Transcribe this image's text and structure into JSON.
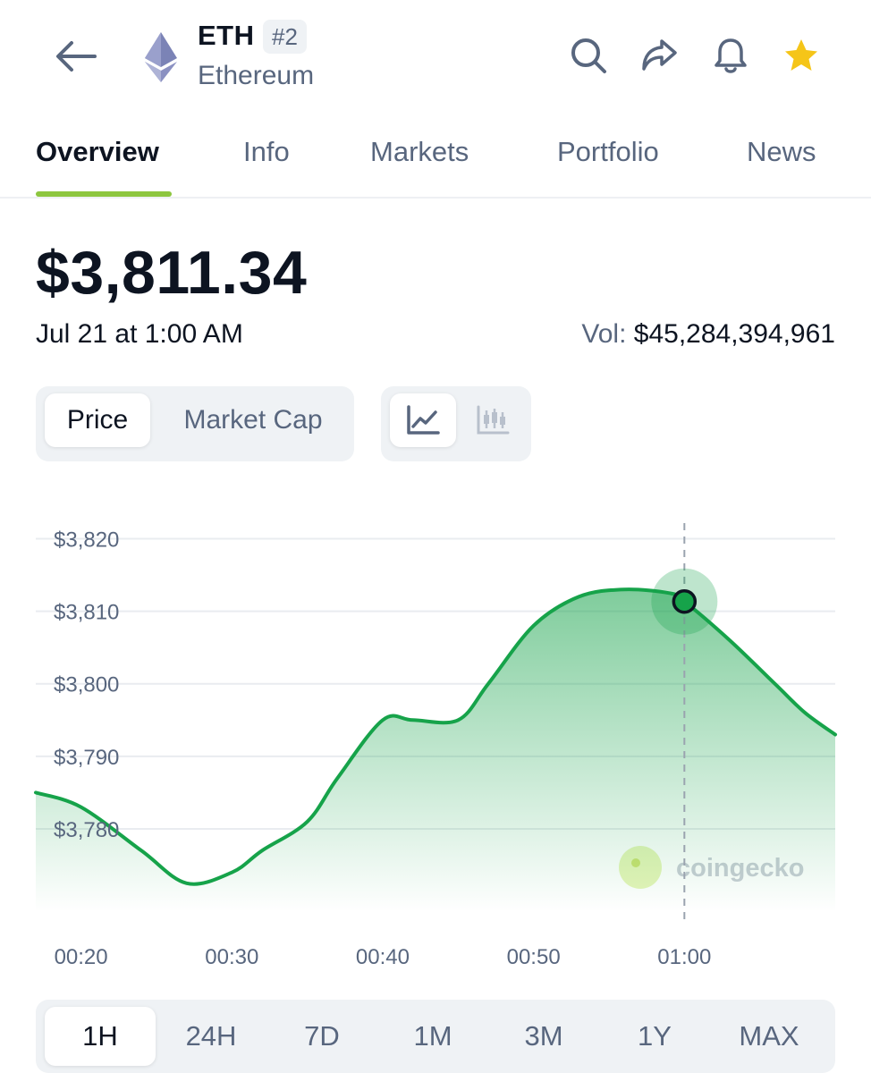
{
  "header": {
    "coin_symbol": "ETH",
    "rank": "#2",
    "coin_name": "Ethereum",
    "icons": [
      "back-arrow-icon",
      "ethereum-logo",
      "search-icon",
      "share-icon",
      "bell-icon",
      "star-icon"
    ]
  },
  "tabs": [
    {
      "label": "Overview",
      "active": true
    },
    {
      "label": "Info",
      "active": false
    },
    {
      "label": "Markets",
      "active": false
    },
    {
      "label": "Portfolio",
      "active": false
    },
    {
      "label": "News",
      "active": false
    }
  ],
  "price": {
    "value": "$3,811.34",
    "timestamp": "Jul 21 at 1:00 AM",
    "volume_label": "Vol:",
    "volume_value": "$45,284,394,961"
  },
  "metric_toggle": [
    {
      "label": "Price",
      "active": true
    },
    {
      "label": "Market Cap",
      "active": false
    }
  ],
  "chart_type_toggle": [
    {
      "icon": "line-chart-icon",
      "active": true
    },
    {
      "icon": "candlestick-chart-icon",
      "active": false
    }
  ],
  "watermark": "coingecko",
  "ranges": [
    {
      "label": "1H",
      "active": true
    },
    {
      "label": "24H",
      "active": false
    },
    {
      "label": "7D",
      "active": false
    },
    {
      "label": "1M",
      "active": false
    },
    {
      "label": "3M",
      "active": false
    },
    {
      "label": "1Y",
      "active": false
    },
    {
      "label": "MAX",
      "active": false
    }
  ],
  "colors": {
    "line": "#16a34a",
    "accent": "#8dc63f",
    "star": "#f5c518",
    "muted": "#58667e"
  },
  "chart_data": {
    "type": "area",
    "ytick_labels": [
      "$3,820",
      "$3,810",
      "$3,800",
      "$3,790",
      "$3,780"
    ],
    "ytick_values": [
      3820,
      3810,
      3800,
      3790,
      3780
    ],
    "xtick_labels": [
      "00:20",
      "00:30",
      "00:40",
      "00:50",
      "01:00"
    ],
    "ylim": [
      3771,
      3824
    ],
    "xlim": [
      "00:17",
      "01:10"
    ],
    "series": [
      {
        "x": [
          "00:17",
          "00:20",
          "00:24",
          "00:27",
          "00:30",
          "00:32",
          "00:35",
          "00:37",
          "00:40",
          "00:42",
          "00:45",
          "00:47",
          "00:50",
          "00:53",
          "00:56",
          "00:59",
          "01:00",
          "01:03",
          "01:06",
          "01:08",
          "01:10"
        ],
        "y": [
          3785,
          3783,
          3777,
          3772.5,
          3774,
          3777,
          3781,
          3787,
          3795,
          3795,
          3795,
          3800,
          3808,
          3812,
          3813,
          3812.5,
          3811.34,
          3806,
          3800,
          3796,
          3793
        ]
      }
    ],
    "highlight": {
      "x": "01:00",
      "y": 3811.34
    },
    "grid": true
  }
}
